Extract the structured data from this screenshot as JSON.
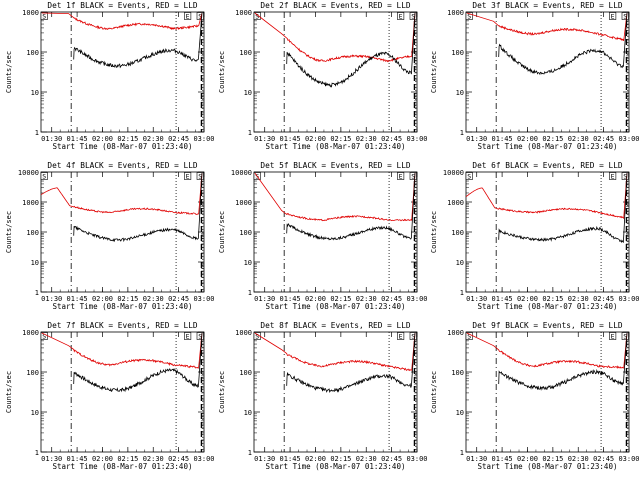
{
  "chart_data": [
    {
      "type": "line",
      "title": "Det 1f BLACK = Events, RED = LLD",
      "xlabel": "Start Time (08-Mar-07 01:23:40)",
      "ylabel": "Counts/sec",
      "x_tick_labels": [
        "01:30",
        "01:45",
        "02:00",
        "02:15",
        "02:30",
        "02:45",
        "03:00"
      ],
      "y_tick_labels": [
        "1",
        "10",
        "100",
        "1000"
      ],
      "y_scale": "log",
      "ylim": [
        1,
        1000
      ],
      "markers": [
        {
          "label": "S",
          "time": "01:24"
        },
        {
          "label": "E",
          "time": "02:49"
        },
        {
          "label": "S",
          "time": "02:58"
        }
      ],
      "events": {
        "start_value": 130,
        "min_value": 45,
        "mid_peak": 110,
        "end_value": 60
      },
      "lld": {
        "start_value": 700,
        "mid_value": 380,
        "end_value": 450,
        "early_value": null
      }
    },
    {
      "type": "line",
      "title": "Det 2f BLACK = Events, RED = LLD",
      "xlabel": "Start Time (08-Mar-07 01:23:40)",
      "ylabel": "Counts/sec",
      "x_tick_labels": [
        "01:30",
        "01:45",
        "02:00",
        "02:15",
        "02:30",
        "02:45",
        "03:00"
      ],
      "y_tick_labels": [
        "1",
        "10",
        "100",
        "1000"
      ],
      "y_scale": "log",
      "ylim": [
        1,
        1000
      ],
      "markers": [
        {
          "label": "S",
          "time": "01:24"
        },
        {
          "label": "E",
          "time": "02:49"
        },
        {
          "label": "S",
          "time": "02:58"
        }
      ],
      "events": {
        "start_value": 100,
        "min_value": 15,
        "mid_peak": 90,
        "end_value": 30
      },
      "lld": {
        "start_value": 220,
        "mid_value": 60,
        "end_value": 80,
        "early_value": null
      }
    },
    {
      "type": "line",
      "title": "Det 3f BLACK = Events, RED = LLD",
      "xlabel": "Start Time (08-Mar-07 01:23:40)",
      "ylabel": "Counts/sec",
      "x_tick_labels": [
        "01:30",
        "01:45",
        "02:00",
        "02:15",
        "02:30",
        "02:45",
        "03:00"
      ],
      "y_tick_labels": [
        "1",
        "10",
        "100",
        "1000"
      ],
      "y_scale": "log",
      "ylim": [
        1,
        1000
      ],
      "markers": [
        {
          "label": "S",
          "time": "01:24"
        },
        {
          "label": "E",
          "time": "02:49"
        },
        {
          "label": "S",
          "time": "02:58"
        }
      ],
      "events": {
        "start_value": 150,
        "min_value": 30,
        "mid_peak": 110,
        "end_value": 45
      },
      "lld": {
        "start_value": 450,
        "mid_value": 280,
        "end_value": 200,
        "early_value": null
      }
    },
    {
      "type": "line",
      "title": "Det 4f BLACK = Events, RED = LLD",
      "xlabel": "Start Time (08-Mar-07 01:23:40)",
      "ylabel": "Counts/sec",
      "x_tick_labels": [
        "01:30",
        "01:45",
        "02:00",
        "02:15",
        "02:30",
        "02:45",
        "03:00"
      ],
      "y_tick_labels": [
        "1",
        "10",
        "100",
        "1000"
      ],
      "y_scale": "log",
      "ylim": [
        1,
        10000
      ],
      "markers": [
        {
          "label": "S",
          "time": "01:24"
        },
        {
          "label": "E",
          "time": "02:49"
        },
        {
          "label": "S",
          "time": "02:58"
        }
      ],
      "events": {
        "start_value": 150,
        "min_value": 55,
        "mid_peak": 120,
        "end_value": 60
      },
      "lld": {
        "start_value": 700,
        "mid_value": 450,
        "end_value": 400,
        "early_value": 3000
      }
    },
    {
      "type": "line",
      "title": "Det 5f BLACK = Events, RED = LLD",
      "xlabel": "Start Time (08-Mar-07 01:23:40)",
      "ylabel": "Counts/sec",
      "x_tick_labels": [
        "01:30",
        "01:45",
        "02:00",
        "02:15",
        "02:30",
        "02:45",
        "03:00"
      ],
      "y_tick_labels": [
        "1",
        "10",
        "100",
        "1000"
      ],
      "y_scale": "log",
      "ylim": [
        1,
        10000
      ],
      "markers": [
        {
          "label": "S",
          "time": "01:24"
        },
        {
          "label": "E",
          "time": "02:49"
        },
        {
          "label": "S",
          "time": "02:58"
        }
      ],
      "events": {
        "start_value": 180,
        "min_value": 60,
        "mid_peak": 140,
        "end_value": 60
      },
      "lld": {
        "start_value": 400,
        "mid_value": 250,
        "end_value": 250,
        "early_value": null
      }
    },
    {
      "type": "line",
      "title": "Det 6f BLACK = Events, RED = LLD",
      "xlabel": "Start Time (08-Mar-07 01:23:40)",
      "ylabel": "Counts/sec",
      "x_tick_labels": [
        "01:30",
        "01:45",
        "02:00",
        "02:15",
        "02:30",
        "02:45",
        "03:00"
      ],
      "y_tick_labels": [
        "1",
        "10",
        "100",
        "1000"
      ],
      "y_scale": "log",
      "ylim": [
        1,
        10000
      ],
      "markers": [
        {
          "label": "S",
          "time": "01:24"
        },
        {
          "label": "E",
          "time": "02:49"
        },
        {
          "label": "S",
          "time": "02:58"
        }
      ],
      "events": {
        "start_value": 110,
        "min_value": 55,
        "mid_peak": 130,
        "end_value": 50
      },
      "lld": {
        "start_value": 600,
        "mid_value": 450,
        "end_value": 300,
        "early_value": 3000
      }
    },
    {
      "type": "line",
      "title": "Det 7f BLACK = Events, RED = LLD",
      "xlabel": "Start Time (08-Mar-07 01:23:40)",
      "ylabel": "Counts/sec",
      "x_tick_labels": [
        "01:30",
        "01:45",
        "02:00",
        "02:15",
        "02:30",
        "02:45",
        "03:00"
      ],
      "y_tick_labels": [
        "1",
        "10",
        "100",
        "1000"
      ],
      "y_scale": "log",
      "ylim": [
        1,
        1000
      ],
      "markers": [
        {
          "label": "S",
          "time": "01:24"
        },
        {
          "label": "E",
          "time": "02:49"
        },
        {
          "label": "S",
          "time": "02:58"
        }
      ],
      "events": {
        "start_value": 100,
        "min_value": 35,
        "mid_peak": 110,
        "end_value": 45
      },
      "lld": {
        "start_value": 350,
        "mid_value": 150,
        "end_value": 130,
        "early_value": null
      }
    },
    {
      "type": "line",
      "title": "Det 8f BLACK = Events, RED = LLD",
      "xlabel": "Start Time (08-Mar-07 01:23:40)",
      "ylabel": "Counts/sec",
      "x_tick_labels": [
        "01:30",
        "01:45",
        "02:00",
        "02:15",
        "02:30",
        "02:45",
        "03:00"
      ],
      "y_tick_labels": [
        "1",
        "10",
        "100",
        "1000"
      ],
      "y_scale": "log",
      "ylim": [
        1,
        1000
      ],
      "markers": [
        {
          "label": "S",
          "time": "01:24"
        },
        {
          "label": "E",
          "time": "02:49"
        },
        {
          "label": "S",
          "time": "02:58"
        }
      ],
      "events": {
        "start_value": 90,
        "min_value": 35,
        "mid_peak": 80,
        "end_value": 45
      },
      "lld": {
        "start_value": 280,
        "mid_value": 140,
        "end_value": 110,
        "early_value": null
      }
    },
    {
      "type": "line",
      "title": "Det 9f BLACK = Events, RED = LLD",
      "xlabel": "Start Time (08-Mar-07 01:23:40)",
      "ylabel": "Counts/sec",
      "x_tick_labels": [
        "01:30",
        "01:45",
        "02:00",
        "02:15",
        "02:30",
        "02:45",
        "03:00"
      ],
      "y_tick_labels": [
        "1",
        "10",
        "100",
        "1000"
      ],
      "y_scale": "log",
      "ylim": [
        1,
        1000
      ],
      "markers": [
        {
          "label": "S",
          "time": "01:24"
        },
        {
          "label": "E",
          "time": "02:49"
        },
        {
          "label": "S",
          "time": "02:58"
        }
      ],
      "events": {
        "start_value": 100,
        "min_value": 40,
        "mid_peak": 100,
        "end_value": 50
      },
      "lld": {
        "start_value": 350,
        "mid_value": 140,
        "end_value": 130,
        "early_value": null
      }
    }
  ],
  "colors": {
    "events": "#000000",
    "lld": "#e00000"
  }
}
